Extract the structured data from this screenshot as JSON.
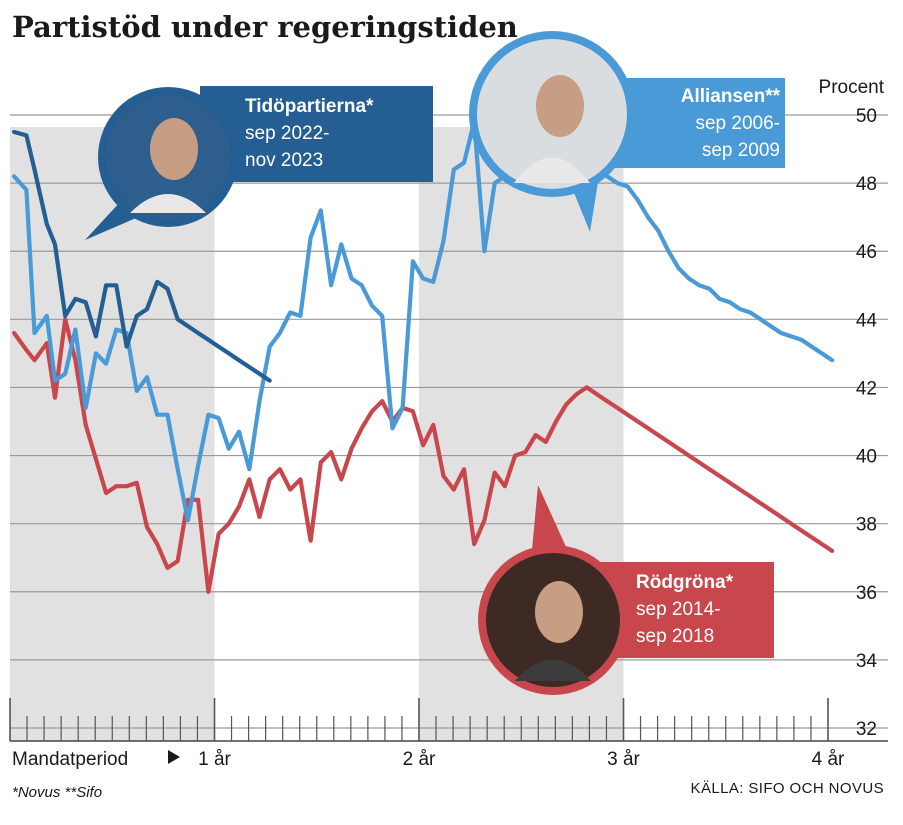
{
  "chart_data": {
    "type": "line",
    "title": "Partistöd under regeringstiden",
    "ylabel": "Procent",
    "ylim": [
      32,
      50
    ],
    "y_ticks": [
      32,
      34,
      36,
      38,
      40,
      42,
      44,
      46,
      48,
      50
    ],
    "x_axis_label": "Mandatperiod",
    "x_ticks": [
      {
        "x": 1,
        "label": "1 år"
      },
      {
        "x": 2,
        "label": "2 år"
      },
      {
        "x": 3,
        "label": "3 år"
      },
      {
        "x": 4,
        "label": "4 år"
      }
    ],
    "xlim": [
      0,
      4.1
    ],
    "shaded_years": [
      [
        0,
        1
      ],
      [
        2,
        3
      ]
    ],
    "footnote": "*Novus  **Sifo",
    "source": "KÄLLA: SIFO OCH NOVUS",
    "series": [
      {
        "name": "Alliansen**",
        "period_l1": "sep 2006-",
        "period_l2": "sep 2009",
        "color": "#4a9ad8",
        "x": [
          0.02,
          0.08,
          0.12,
          0.18,
          0.22,
          0.27,
          0.32,
          0.37,
          0.42,
          0.47,
          0.52,
          0.57,
          0.62,
          0.67,
          0.72,
          0.77,
          0.82,
          0.87,
          0.92,
          0.97,
          1.02,
          1.07,
          1.12,
          1.17,
          1.22,
          1.27,
          1.32,
          1.37,
          1.42,
          1.47,
          1.52,
          1.57,
          1.62,
          1.67,
          1.72,
          1.77,
          1.82,
          1.87,
          1.92,
          1.97,
          2.02,
          2.07,
          2.12,
          2.17,
          2.22,
          2.27,
          2.32,
          2.37,
          2.42,
          2.47,
          2.52,
          2.57,
          2.62,
          2.67,
          2.72,
          2.77,
          2.82,
          2.87,
          2.92,
          2.97,
          3.02,
          3.07,
          3.12,
          3.17,
          3.22,
          3.27,
          3.32,
          3.37,
          3.42,
          3.47,
          3.52,
          3.57,
          3.62,
          3.67,
          3.72,
          3.77,
          3.82,
          3.87,
          3.92,
          3.97,
          4.02
        ],
        "values": [
          48.2,
          47.8,
          43.6,
          44.1,
          42.2,
          42.4,
          43.7,
          41.4,
          43.0,
          42.7,
          43.7,
          43.6,
          41.9,
          42.3,
          41.2,
          41.2,
          39.6,
          38.1,
          39.7,
          41.2,
          41.1,
          40.2,
          40.7,
          39.6,
          41.6,
          43.2,
          43.6,
          44.2,
          44.1,
          46.4,
          47.2,
          45.0,
          46.2,
          45.2,
          45.0,
          44.4,
          44.1,
          40.8,
          41.4,
          45.7,
          45.2,
          45.1,
          46.3,
          48.4,
          48.6,
          49.8,
          46.0,
          48.0,
          48.2,
          49.5,
          50.3,
          50.6,
          50.2,
          50.0,
          49.5,
          49.0,
          48.5,
          48.4,
          48.2,
          48.0,
          47.9,
          47.5,
          47.0,
          46.6,
          46.0,
          45.5,
          45.2,
          45.0,
          44.9,
          44.6,
          44.5,
          44.3,
          44.2,
          44.0,
          43.8,
          43.6,
          43.5,
          43.4,
          43.2,
          43.0,
          42.8
        ]
      },
      {
        "name": "Rödgröna*",
        "period_l1": "sep 2014-",
        "period_l2": "sep 2018",
        "color": "#c8474c",
        "x": [
          0.02,
          0.08,
          0.12,
          0.18,
          0.22,
          0.27,
          0.32,
          0.37,
          0.42,
          0.47,
          0.52,
          0.57,
          0.62,
          0.67,
          0.72,
          0.77,
          0.82,
          0.87,
          0.92,
          0.97,
          1.02,
          1.07,
          1.12,
          1.17,
          1.22,
          1.27,
          1.32,
          1.37,
          1.42,
          1.47,
          1.52,
          1.57,
          1.62,
          1.67,
          1.72,
          1.77,
          1.82,
          1.87,
          1.92,
          1.97,
          2.02,
          2.07,
          2.12,
          2.17,
          2.22,
          2.27,
          2.32,
          2.37,
          2.42,
          2.47,
          2.52,
          2.57,
          2.62,
          2.67,
          2.72,
          2.77,
          2.82,
          2.87,
          2.92,
          2.97,
          3.02,
          3.07,
          3.12,
          3.17,
          3.22,
          3.27,
          3.32,
          3.37,
          3.42,
          3.47,
          3.52,
          3.57,
          3.62,
          3.67,
          3.72,
          3.77,
          3.82,
          3.87,
          3.92,
          3.97,
          4.02
        ],
        "values": [
          43.6,
          43.1,
          42.8,
          43.3,
          41.7,
          44.0,
          42.8,
          40.9,
          39.9,
          38.9,
          39.1,
          39.1,
          39.2,
          37.9,
          37.4,
          36.7,
          36.9,
          38.7,
          38.7,
          36.0,
          37.7,
          38.0,
          38.5,
          39.3,
          38.2,
          39.3,
          39.6,
          39.0,
          39.3,
          37.5,
          39.8,
          40.1,
          39.3,
          40.2,
          40.8,
          41.3,
          41.6,
          41.0,
          41.4,
          41.3,
          40.3,
          40.9,
          39.4,
          39.0,
          39.6,
          37.4,
          38.1,
          39.5,
          39.1,
          40.0,
          40.1,
          40.6,
          40.4,
          41.0,
          41.5,
          41.8,
          42.0,
          41.8,
          41.6,
          41.4,
          41.2,
          41.0,
          40.8,
          40.6,
          40.4,
          40.2,
          40.0,
          39.8,
          39.6,
          39.4,
          39.2,
          39.0,
          38.8,
          38.6,
          38.4,
          38.2,
          38.0,
          37.8,
          37.6,
          37.4,
          37.2
        ]
      },
      {
        "name": "Tidöpartierna*",
        "period_l1": "sep 2022-",
        "period_l2": "nov 2023",
        "color": "#245e92",
        "x": [
          0.02,
          0.08,
          0.12,
          0.18,
          0.22,
          0.27,
          0.32,
          0.37,
          0.42,
          0.47,
          0.52,
          0.57,
          0.62,
          0.67,
          0.72,
          0.77,
          0.82,
          0.87,
          0.92,
          0.97,
          1.02,
          1.07,
          1.12,
          1.17,
          1.22,
          1.27
        ],
        "values": [
          49.5,
          49.4,
          48.4,
          46.8,
          46.2,
          44.1,
          44.6,
          44.5,
          43.5,
          45.0,
          45.0,
          43.2,
          44.1,
          44.3,
          45.1,
          44.9,
          44.0,
          43.8,
          43.6,
          43.4,
          43.2,
          43.0,
          42.8,
          42.6,
          42.4,
          42.2
        ]
      }
    ]
  }
}
